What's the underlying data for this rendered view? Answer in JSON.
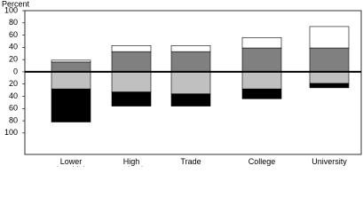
{
  "chart_data": {
    "type": "diverging-stacked-bar",
    "y_label": "Percent",
    "categories": [
      "Lower\nthan high\nschool",
      "High\nschool",
      "Trade",
      "College",
      "University"
    ],
    "series": [
      {
        "color": "#808080",
        "values": [
          16,
          33,
          33,
          39,
          39
        ]
      },
      {
        "color": "#ffffff",
        "values": [
          3,
          10,
          10,
          17,
          35
        ]
      },
      {
        "color": "#c0c0c0",
        "values": [
          -28,
          -33,
          -36,
          -28,
          -19
        ]
      },
      {
        "color": "#000000",
        "values": [
          -54,
          -23,
          -20,
          -16,
          -7
        ]
      }
    ],
    "ylim": [
      -135,
      100
    ],
    "yticks": [
      100,
      80,
      60,
      40,
      20,
      0,
      {
        "value": -20,
        "label": "20"
      },
      {
        "value": -40,
        "label": "40"
      },
      {
        "value": -60,
        "label": "60"
      },
      {
        "value": -80,
        "label": "80"
      },
      {
        "value": -100,
        "label": "100"
      }
    ],
    "grid": false
  }
}
